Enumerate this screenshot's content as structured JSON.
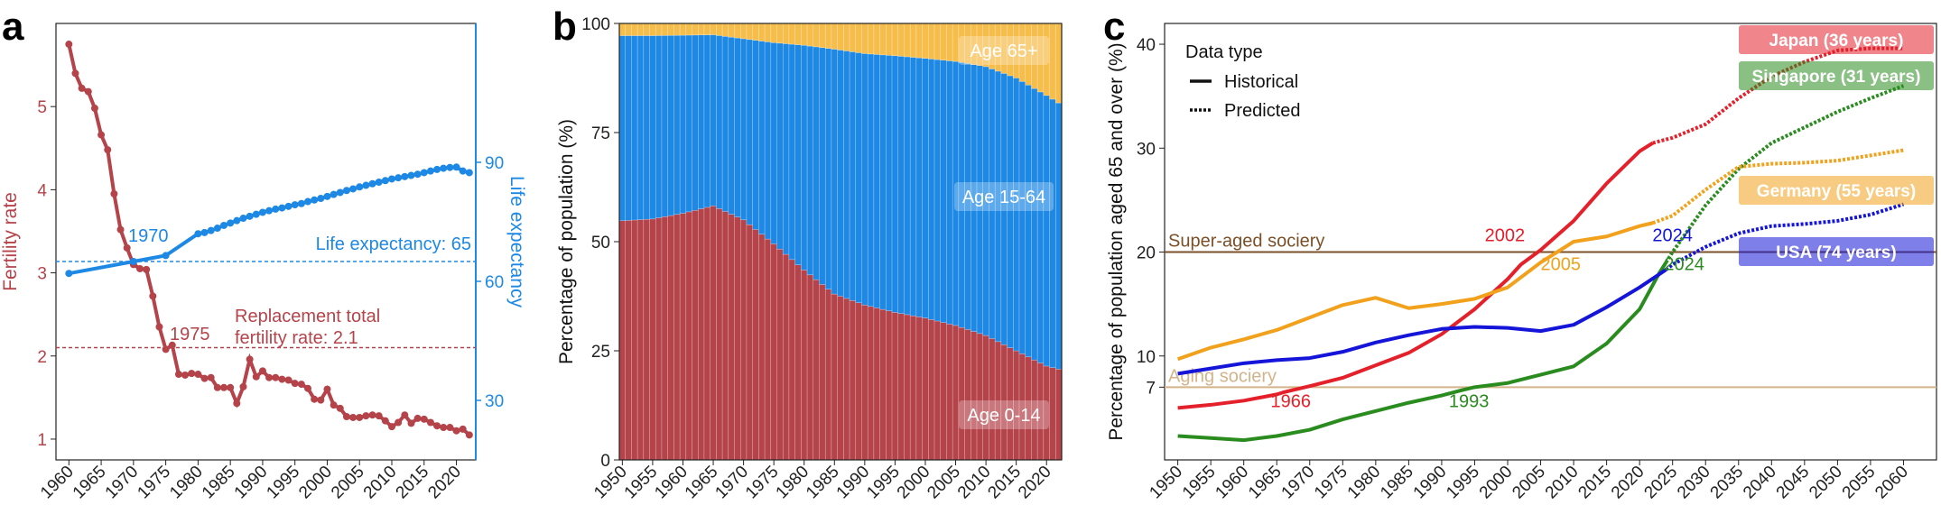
{
  "colors": {
    "fertility": "#b5434a",
    "life": "#1e88e5",
    "age0_14": "#b5434a",
    "age15_64": "#1e88e5",
    "age65": "#f7bd4b",
    "japan": "#e4202b",
    "singapore": "#2a8c1f",
    "germany": "#f2a11c",
    "usa": "#1515d9",
    "super_aged": "#7b5028",
    "aging": "#d3b48a"
  },
  "chart_data": [
    {
      "panel": "a",
      "type": "line",
      "xlabel": "",
      "ylabel_left": "Fertility rate",
      "ylabel_right": "Life expectancy",
      "x_ticks": [
        "1960",
        "1965",
        "1970",
        "1975",
        "1980",
        "1985",
        "1990",
        "1995",
        "2000",
        "2005",
        "2010",
        "2015",
        "2020"
      ],
      "y_left_ticks": [
        "1",
        "2",
        "3",
        "4",
        "5"
      ],
      "y_right_ticks": [
        "30",
        "60",
        "90"
      ],
      "xlim": [
        1958,
        2023
      ],
      "ylim_left": [
        0.75,
        6.0
      ],
      "ylim_right": [
        15,
        125
      ],
      "series": [
        {
          "name": "Fertility rate",
          "axis": "left",
          "x": [
            1960,
            1961,
            1962,
            1963,
            1964,
            1965,
            1966,
            1967,
            1968,
            1969,
            1970,
            1971,
            1972,
            1973,
            1974,
            1975,
            1976,
            1977,
            1978,
            1979,
            1980,
            1981,
            1982,
            1983,
            1984,
            1985,
            1986,
            1987,
            1988,
            1989,
            1990,
            1991,
            1992,
            1993,
            1994,
            1995,
            1996,
            1997,
            1998,
            1999,
            2000,
            2001,
            2002,
            2003,
            2004,
            2005,
            2006,
            2007,
            2008,
            2009,
            2010,
            2011,
            2012,
            2013,
            2014,
            2015,
            2016,
            2017,
            2018,
            2019,
            2020,
            2021,
            2022
          ],
          "values": [
            5.75,
            5.4,
            5.22,
            5.18,
            4.98,
            4.66,
            4.48,
            3.95,
            3.52,
            3.3,
            3.1,
            3.05,
            3.04,
            2.72,
            2.35,
            2.08,
            2.13,
            1.78,
            1.77,
            1.79,
            1.78,
            1.73,
            1.74,
            1.62,
            1.62,
            1.62,
            1.43,
            1.63,
            1.96,
            1.75,
            1.82,
            1.74,
            1.74,
            1.72,
            1.71,
            1.67,
            1.66,
            1.61,
            1.48,
            1.47,
            1.6,
            1.41,
            1.37,
            1.27,
            1.26,
            1.26,
            1.28,
            1.29,
            1.28,
            1.22,
            1.15,
            1.2,
            1.29,
            1.19,
            1.25,
            1.24,
            1.2,
            1.16,
            1.14,
            1.14,
            1.1,
            1.12,
            1.05
          ]
        },
        {
          "name": "Life expectancy",
          "axis": "right",
          "x": [
            1960,
            1970,
            1975,
            1980,
            1981,
            1982,
            1983,
            1984,
            1985,
            1986,
            1987,
            1988,
            1989,
            1990,
            1991,
            1992,
            1993,
            1994,
            1995,
            1996,
            1997,
            1998,
            1999,
            2000,
            2001,
            2002,
            2003,
            2004,
            2005,
            2006,
            2007,
            2008,
            2009,
            2010,
            2011,
            2012,
            2013,
            2014,
            2015,
            2016,
            2017,
            2018,
            2019,
            2020,
            2021,
            2022
          ],
          "values": [
            62,
            65,
            66.5,
            72,
            72.3,
            72.8,
            73.4,
            74.1,
            74.7,
            75.3,
            75.9,
            76.4,
            76.9,
            77.4,
            77.8,
            78.2,
            78.5,
            78.9,
            79.3,
            79.6,
            80.1,
            80.5,
            80.9,
            81.4,
            81.9,
            82.4,
            82.9,
            83.3,
            83.8,
            84.2,
            84.6,
            85,
            85.4,
            85.8,
            86.1,
            86.4,
            86.7,
            87,
            87.4,
            87.8,
            88.2,
            88.5,
            88.7,
            88.8,
            87.8,
            87.4
          ]
        }
      ],
      "annotations": [
        {
          "text": "Life expectancy: 65",
          "y": 65,
          "axis": "right"
        },
        {
          "text": "1970",
          "x": 1970
        },
        {
          "text": "Replacement total",
          "y": 2.1,
          "axis": "left"
        },
        {
          "text": "fertility rate: 2.1"
        },
        {
          "text": "1975",
          "x": 1975
        }
      ]
    },
    {
      "panel": "b",
      "type": "area",
      "ylabel": "Percentage of population (%)",
      "x_ticks": [
        "1950",
        "1955",
        "1960",
        "1965",
        "1970",
        "1975",
        "1980",
        "1985",
        "1990",
        "1995",
        "2000",
        "2005",
        "2010",
        "2015",
        "2020"
      ],
      "y_ticks": [
        "0",
        "25",
        "50",
        "75",
        "100"
      ],
      "xlim": [
        1950,
        2022
      ],
      "ylim": [
        0,
        100
      ],
      "stacked": true,
      "x": [
        1950,
        1955,
        1960,
        1965,
        1970,
        1975,
        1980,
        1985,
        1990,
        1995,
        2000,
        2005,
        2010,
        2015,
        2020,
        2022
      ],
      "series": [
        {
          "name": "Age 0-14",
          "values": [
            54.8,
            55.2,
            56.5,
            58.2,
            55,
            49.5,
            43.5,
            38,
            35.5,
            33.8,
            32.5,
            30.8,
            28.5,
            25,
            21.5,
            20.8
          ]
        },
        {
          "name": "Age 15-64",
          "values": [
            42.4,
            42,
            40.8,
            39.2,
            41.5,
            46.1,
            51.5,
            56.1,
            57.6,
            58.8,
            59.5,
            60.5,
            61.6,
            62.5,
            62,
            61
          ]
        },
        {
          "name": "Age 65+",
          "values": [
            2.8,
            2.8,
            2.7,
            2.6,
            3.5,
            4.4,
            5,
            5.9,
            6.9,
            7.4,
            8,
            8.7,
            9.9,
            12.5,
            16.5,
            18.2
          ]
        }
      ]
    },
    {
      "panel": "c",
      "type": "line",
      "ylabel": "Percentage of population aged 65 and over (%)",
      "x_ticks": [
        "1950",
        "1955",
        "1960",
        "1965",
        "1970",
        "1975",
        "1980",
        "1985",
        "1990",
        "1995",
        "2000",
        "2005",
        "2010",
        "2015",
        "2020",
        "2025",
        "2030",
        "2035",
        "2040",
        "2045",
        "2050",
        "2055",
        "2060"
      ],
      "y_ticks": [
        "7",
        "10",
        "20",
        "30",
        "40"
      ],
      "xlim": [
        1948,
        2065
      ],
      "ylim": [
        0,
        42
      ],
      "legend": {
        "title": "Data type",
        "entries": [
          "Historical",
          "Predicted"
        ],
        "position": "top-left"
      },
      "series": [
        {
          "name": "Japan (36 years)",
          "color_key": "japan",
          "historical": {
            "x": [
              1950,
              1955,
              1960,
              1965,
              1966,
              1970,
              1975,
              1980,
              1985,
              1990,
              1995,
              2000,
              2002,
              2005,
              2010,
              2015,
              2020,
              2022
            ],
            "values": [
              5.0,
              5.3,
              5.7,
              6.3,
              6.5,
              7.1,
              7.9,
              9.1,
              10.3,
              12.1,
              14.5,
              17.4,
              18.8,
              20.2,
              23.0,
              26.6,
              29.7,
              30.5
            ]
          },
          "predicted": {
            "x": [
              2022,
              2025,
              2030,
              2035,
              2040,
              2045,
              2050,
              2055,
              2060
            ],
            "values": [
              30.5,
              31.0,
              32.3,
              34.8,
              36.9,
              38.3,
              39.4,
              39.6,
              39.6
            ]
          }
        },
        {
          "name": "Singapore (31 years)",
          "color_key": "singapore",
          "historical": {
            "x": [
              1950,
              1955,
              1960,
              1965,
              1970,
              1975,
              1980,
              1985,
              1990,
              1993,
              1995,
              2000,
              2005,
              2010,
              2015,
              2020,
              2023,
              2024
            ],
            "values": [
              2.3,
              2.1,
              1.9,
              2.3,
              2.9,
              3.9,
              4.7,
              5.5,
              6.2,
              6.7,
              7.0,
              7.4,
              8.2,
              9.0,
              11.2,
              14.5,
              18.0,
              19.0
            ]
          },
          "predicted": {
            "x": [
              2024,
              2025,
              2030,
              2035,
              2040,
              2045,
              2050,
              2055,
              2060
            ],
            "values": [
              19.0,
              20.0,
              24.5,
              28.0,
              30.5,
              32.0,
              33.5,
              34.8,
              36.0
            ]
          }
        },
        {
          "name": "Germany (55 years)",
          "color_key": "germany",
          "historical": {
            "x": [
              1950,
              1955,
              1960,
              1965,
              1970,
              1975,
              1980,
              1985,
              1990,
              1995,
              2000,
              2005,
              2010,
              2015,
              2020,
              2022
            ],
            "values": [
              9.7,
              10.8,
              11.6,
              12.5,
              13.7,
              14.9,
              15.6,
              14.6,
              15.0,
              15.5,
              16.6,
              19.0,
              21.0,
              21.5,
              22.5,
              22.8
            ]
          },
          "predicted": {
            "x": [
              2022,
              2025,
              2030,
              2035,
              2040,
              2045,
              2050,
              2055,
              2060
            ],
            "values": [
              22.8,
              23.5,
              26.0,
              28.2,
              28.5,
              28.6,
              28.8,
              29.3,
              29.8
            ]
          }
        },
        {
          "name": "USA (74 years)",
          "color_key": "usa",
          "historical": {
            "x": [
              1950,
              1955,
              1960,
              1965,
              1970,
              1975,
              1980,
              1985,
              1990,
              1995,
              2000,
              2005,
              2010,
              2015,
              2020,
              2024
            ],
            "values": [
              8.3,
              8.8,
              9.3,
              9.6,
              9.8,
              10.4,
              11.3,
              12.0,
              12.6,
              12.8,
              12.7,
              12.4,
              13.0,
              14.7,
              16.6,
              18.3
            ]
          },
          "predicted": {
            "x": [
              2024,
              2025,
              2030,
              2035,
              2040,
              2045,
              2050,
              2055,
              2060
            ],
            "values": [
              18.3,
              18.8,
              20.5,
              21.8,
              22.5,
              22.7,
              23.0,
              23.6,
              24.6
            ]
          }
        }
      ],
      "reference_lines": [
        {
          "label": "Super-aged sociery",
          "y": 20,
          "color_key": "super_aged"
        },
        {
          "label": "Aging sociery",
          "y": 7,
          "color_key": "aging"
        }
      ],
      "year_labels": [
        {
          "text": "1966",
          "color_key": "japan",
          "x": 1966,
          "y": 7
        },
        {
          "text": "1993",
          "color_key": "singapore",
          "x": 1993,
          "y": 7
        },
        {
          "text": "2002",
          "color_key": "japan",
          "x": 2002,
          "y": 20
        },
        {
          "text": "2005",
          "color_key": "germany",
          "x": 2005,
          "y": 20
        },
        {
          "text": "2024",
          "color_key": "usa",
          "x": 2024,
          "y": 20
        },
        {
          "text": "2024",
          "color_key": "singapore",
          "x": 2024,
          "y": 20
        }
      ]
    }
  ]
}
